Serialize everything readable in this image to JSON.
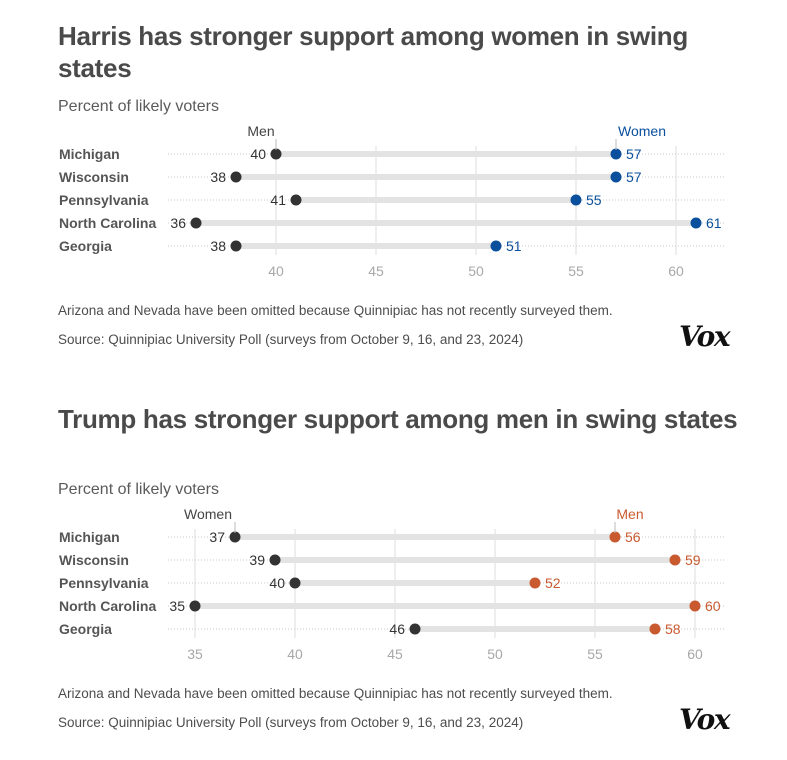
{
  "chart_data": [
    {
      "type": "dumbbell",
      "title": "Harris has stronger support among women in swing states",
      "subtitle": "Percent of likely voters",
      "categories": [
        "Michigan",
        "Wisconsin",
        "Pennsylvania",
        "North Carolina",
        "Georgia"
      ],
      "series": [
        {
          "name": "Men",
          "color": "#333333",
          "values": [
            40,
            38,
            41,
            36,
            38
          ]
        },
        {
          "name": "Women",
          "color": "#0a4f9c",
          "values": [
            57,
            57,
            55,
            61,
            51
          ]
        }
      ],
      "x_ticks": [
        40,
        45,
        50,
        55,
        60
      ],
      "xlim": [
        36,
        61
      ],
      "grid": true,
      "note": "Arizona and Nevada have been omitted because Quinnipiac has not recently surveyed them.",
      "source": "Source: Quinnipiac University Poll (surveys from October 9, 16, and 23, 2024)",
      "logo": "Vox"
    },
    {
      "type": "dumbbell",
      "title": "Trump has stronger support among men in swing states",
      "subtitle": "Percent of likely voters",
      "categories": [
        "Michigan",
        "Wisconsin",
        "Pennsylvania",
        "North Carolina",
        "Georgia"
      ],
      "series": [
        {
          "name": "Women",
          "color": "#333333",
          "values": [
            37,
            39,
            40,
            35,
            46
          ]
        },
        {
          "name": "Men",
          "color": "#c95a30",
          "values": [
            56,
            59,
            52,
            60,
            58
          ]
        }
      ],
      "x_ticks": [
        35,
        40,
        45,
        50,
        55,
        60
      ],
      "xlim": [
        35,
        61
      ],
      "grid": true,
      "note": "Arizona and Nevada have been omitted because Quinnipiac has not recently surveyed them.",
      "source": "Source: Quinnipiac University Poll (surveys from October 9, 16, and 23, 2024)",
      "logo": "Vox"
    }
  ]
}
